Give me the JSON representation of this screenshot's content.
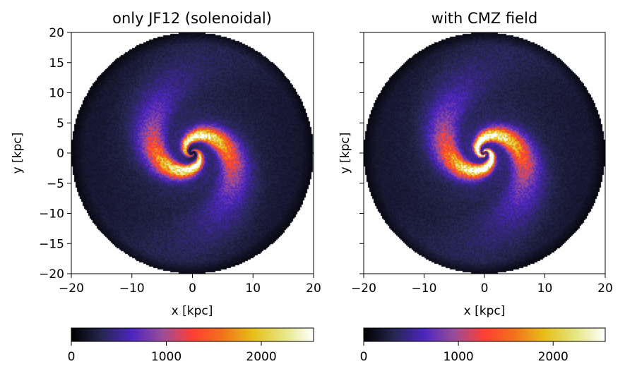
{
  "chart_data": [
    {
      "type": "heatmap",
      "title": "only JF12 (solenoidal)",
      "xlabel": "x [kpc]",
      "ylabel": "y [kpc]",
      "xlim": [
        -20,
        20
      ],
      "ylim": [
        -20,
        20
      ],
      "xticks": [
        -20,
        -10,
        0,
        10,
        20
      ],
      "yticks": [
        -20,
        -15,
        -10,
        -5,
        0,
        5,
        10,
        15,
        20
      ],
      "show_ytick_labels": true,
      "colormap": "CMRmap-like (black-blue-purple-red-orange-yellow-white)",
      "colorbar": {
        "range": [
          0,
          2550
        ],
        "ticks": [
          0,
          1000,
          2000
        ],
        "placement": "bottom"
      },
      "disk_radius_kpc": 20,
      "features": {
        "core_hole": true,
        "spiral_peak": 2500
      }
    },
    {
      "type": "heatmap",
      "title": "with CMZ field",
      "xlabel": "x [kpc]",
      "ylabel": "y [kpc]",
      "xlim": [
        -20,
        20
      ],
      "ylim": [
        -20,
        20
      ],
      "xticks": [
        -20,
        -10,
        0,
        10,
        20
      ],
      "yticks": [
        -20,
        -15,
        -10,
        -5,
        0,
        5,
        10,
        15,
        20
      ],
      "show_ytick_labels": false,
      "colormap": "CMRmap-like (black-blue-purple-red-orange-yellow-white)",
      "colorbar": {
        "range": [
          0,
          2550
        ],
        "ticks": [
          0,
          1000,
          2000
        ],
        "placement": "bottom"
      },
      "disk_radius_kpc": 20,
      "features": {
        "core_hole": false,
        "spiral_peak": 2550
      }
    }
  ]
}
